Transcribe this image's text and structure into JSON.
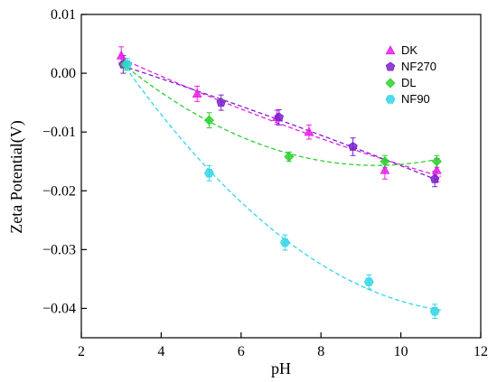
{
  "chart_data": {
    "type": "scatter",
    "xlabel": "pH",
    "ylabel": "Zeta Potential(V)",
    "xlim": [
      2,
      12
    ],
    "ylim": [
      -0.045,
      0.01
    ],
    "x_ticks": [
      "2",
      "4",
      "6",
      "8",
      "10",
      "12"
    ],
    "y_ticks": [
      "0.01",
      "0.00",
      "−0.01",
      "−0.02",
      "−0.03",
      "−0.04"
    ],
    "x_tick_values": [
      2,
      4,
      6,
      8,
      10,
      12
    ],
    "y_tick_values": [
      0.01,
      0.0,
      -0.01,
      -0.02,
      -0.03,
      -0.04
    ],
    "legend_position": "top-right",
    "series": [
      {
        "name": "DK",
        "color": "#e81ee8",
        "marker": "triangle",
        "x": [
          3.0,
          4.9,
          6.9,
          7.7,
          9.6,
          10.9
        ],
        "y": [
          0.003,
          -0.0035,
          -0.0075,
          -0.01,
          -0.0165,
          -0.0165
        ],
        "err": [
          0.0015,
          0.0013,
          0.0012,
          0.0012,
          0.0015,
          0.002
        ],
        "fit_x": [
          3.0,
          11.0
        ],
        "fit_y": [
          0.002,
          -0.0175
        ]
      },
      {
        "name": "NF270",
        "color": "#7b22cc",
        "marker": "pentagon",
        "x": [
          3.05,
          5.5,
          6.95,
          8.8,
          10.85
        ],
        "y": [
          0.0015,
          -0.005,
          -0.0075,
          -0.0125,
          -0.018
        ],
        "err": [
          0.0015,
          0.0013,
          0.0013,
          0.0015,
          0.0013
        ],
        "fit_x": [
          3.0,
          11.0
        ],
        "fit_y": [
          0.0012,
          -0.0185
        ]
      },
      {
        "name": "DL",
        "color": "#2ed12e",
        "marker": "diamond",
        "x": [
          3.1,
          5.2,
          7.2,
          9.6,
          10.9
        ],
        "y": [
          0.0015,
          -0.008,
          -0.0142,
          -0.015,
          -0.015
        ],
        "err": [
          0.001,
          0.0013,
          0.0008,
          0.001,
          0.001
        ],
        "fit_x": [
          3.0,
          11.0
        ],
        "fit_y": [
          0.0015,
          -0.0145
        ]
      },
      {
        "name": "NF90",
        "color": "#33d6e6",
        "marker": "hexagon",
        "x": [
          3.15,
          5.2,
          7.1,
          9.2,
          10.85
        ],
        "y": [
          0.0015,
          -0.017,
          -0.0288,
          -0.0355,
          -0.0405
        ],
        "err": [
          0.001,
          0.0013,
          0.0013,
          0.0012,
          0.0012
        ],
        "fit_x": [
          3.0,
          11.0
        ],
        "fit_y": [
          0.0015,
          -0.0405
        ]
      }
    ]
  }
}
